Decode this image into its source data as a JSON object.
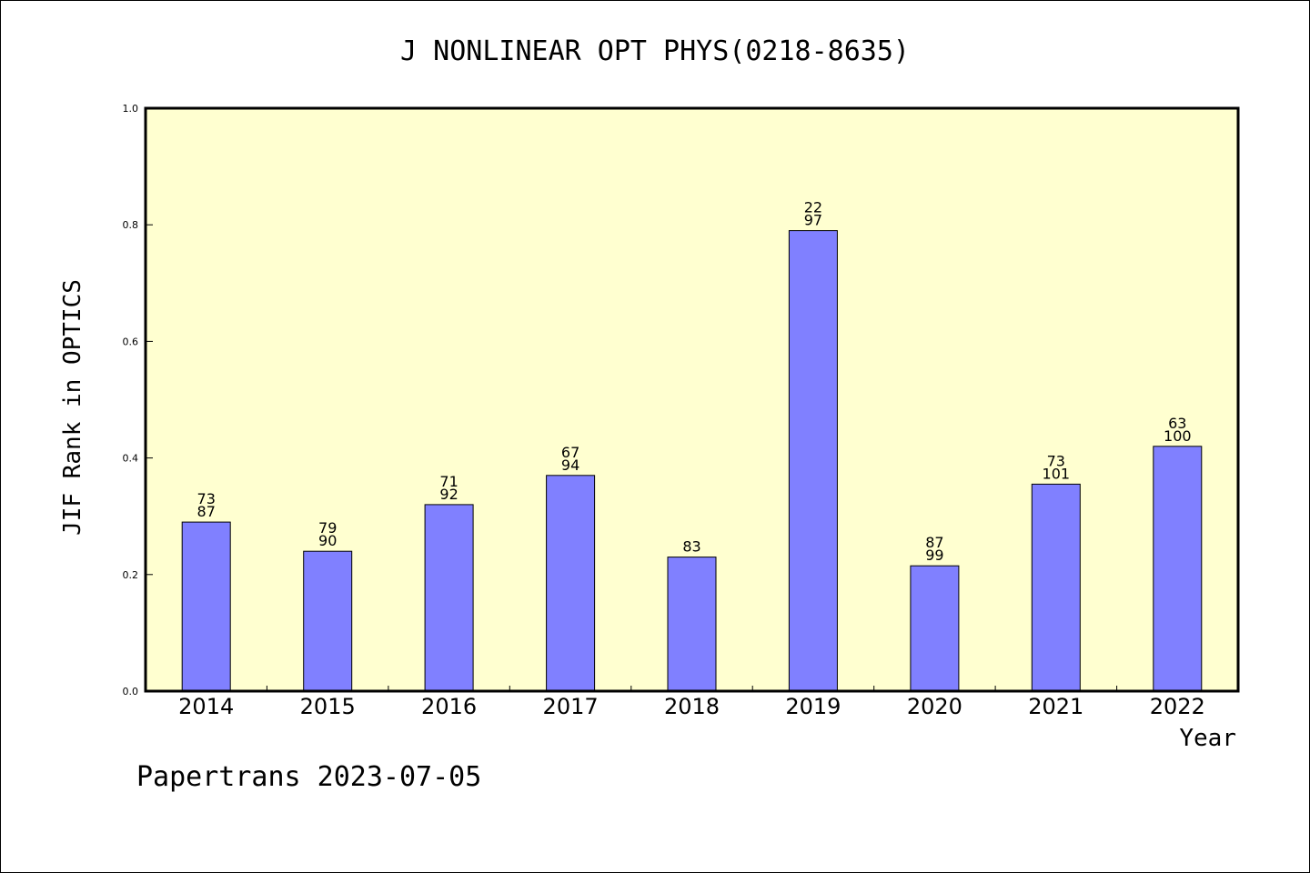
{
  "chart_data": {
    "type": "bar",
    "title": "J NONLINEAR OPT PHYS(0218-8635)",
    "xlabel": "Year",
    "ylabel": "JIF Rank in OPTICS",
    "ylim": [
      0,
      1.0
    ],
    "yticks": [
      "0.0",
      "0.2",
      "0.4",
      "0.6",
      "0.8",
      "1.0"
    ],
    "grid": false,
    "categories": [
      "2014",
      "2015",
      "2016",
      "2017",
      "2018",
      "2019",
      "2020",
      "2021",
      "2022"
    ],
    "values": [
      0.29,
      0.24,
      0.32,
      0.37,
      0.23,
      0.79,
      0.215,
      0.355,
      0.42
    ],
    "labels_top": [
      "73",
      "79",
      "71",
      "67",
      "",
      "22",
      "87",
      "73",
      "63"
    ],
    "labels_bottom": [
      "87",
      "90",
      "92",
      "94",
      "83",
      "97",
      "99",
      "101",
      "100"
    ],
    "colors": {
      "plot_background": "#ffffd0",
      "bar_fill": "#8080ff",
      "bar_stroke": "#000000"
    }
  },
  "footer": {
    "text": "Papertrans 2023-07-05"
  }
}
